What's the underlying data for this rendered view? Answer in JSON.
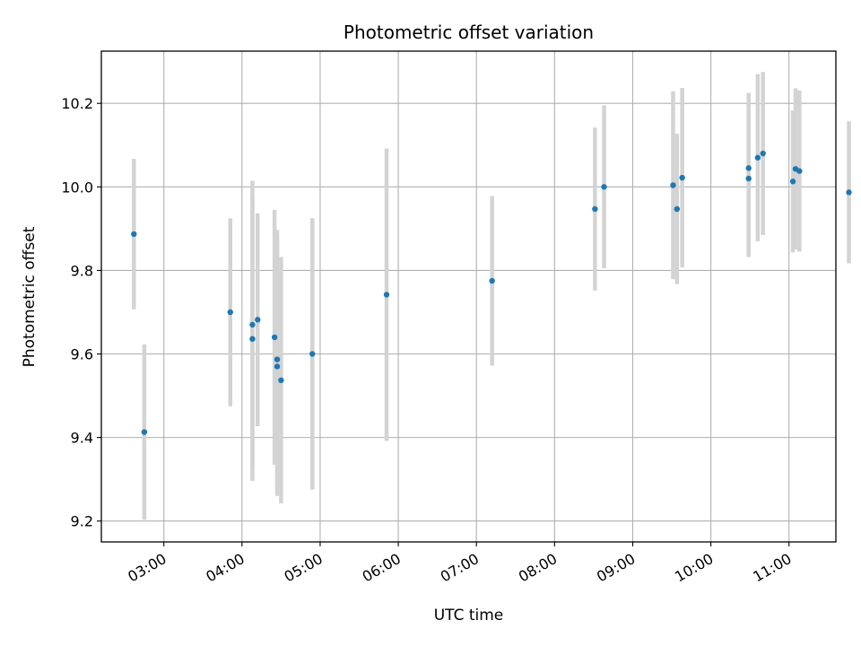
{
  "chart_data": {
    "type": "scatter",
    "title": "Photometric offset variation",
    "xlabel": "UTC time",
    "ylabel": "Photometric offset",
    "x_ticks": [
      "03:00",
      "04:00",
      "05:00",
      "06:00",
      "07:00",
      "08:00",
      "09:00",
      "10:00",
      "11:00"
    ],
    "y_ticks": [
      "9.2",
      "9.4",
      "9.6",
      "9.8",
      "10.0",
      "10.2"
    ],
    "xlim": [
      "02:12",
      "11:36"
    ],
    "ylim": [
      9.15,
      10.325
    ],
    "grid": true,
    "colors": {
      "marker": "#1f77b4",
      "errorbar": "#d3d3d3",
      "grid": "#b0b0b0"
    },
    "points": [
      {
        "x": "02:37",
        "y": 9.887,
        "yerr": 0.18
      },
      {
        "x": "02:45",
        "y": 9.413,
        "yerr": 0.21
      },
      {
        "x": "03:51",
        "y": 9.7,
        "yerr": 0.225
      },
      {
        "x": "04:08",
        "y": 9.636,
        "yerr": 0.34
      },
      {
        "x": "04:08",
        "y": 9.67,
        "yerr": 0.345
      },
      {
        "x": "04:12",
        "y": 9.682,
        "yerr": 0.255
      },
      {
        "x": "04:25",
        "y": 9.64,
        "yerr": 0.305
      },
      {
        "x": "04:27",
        "y": 9.57,
        "yerr": 0.31
      },
      {
        "x": "04:27",
        "y": 9.587,
        "yerr": 0.31
      },
      {
        "x": "04:30",
        "y": 9.537,
        "yerr": 0.295
      },
      {
        "x": "04:54",
        "y": 9.6,
        "yerr": 0.325
      },
      {
        "x": "05:51",
        "y": 9.742,
        "yerr": 0.35
      },
      {
        "x": "07:12",
        "y": 9.775,
        "yerr": 0.203
      },
      {
        "x": "08:31",
        "y": 9.947,
        "yerr": 0.195
      },
      {
        "x": "08:38",
        "y": 10.0,
        "yerr": 0.195
      },
      {
        "x": "09:31",
        "y": 10.004,
        "yerr": 0.225
      },
      {
        "x": "09:34",
        "y": 9.947,
        "yerr": 0.18
      },
      {
        "x": "09:38",
        "y": 10.022,
        "yerr": 0.215
      },
      {
        "x": "10:29",
        "y": 10.02,
        "yerr": 0.188
      },
      {
        "x": "10:29",
        "y": 10.045,
        "yerr": 0.18
      },
      {
        "x": "10:36",
        "y": 10.07,
        "yerr": 0.2
      },
      {
        "x": "10:40",
        "y": 10.08,
        "yerr": 0.195
      },
      {
        "x": "11:03",
        "y": 10.013,
        "yerr": 0.17
      },
      {
        "x": "11:05",
        "y": 10.043,
        "yerr": 0.193
      },
      {
        "x": "11:08",
        "y": 10.038,
        "yerr": 0.193
      },
      {
        "x": "11:46",
        "y": 9.987,
        "yerr": 0.17
      }
    ]
  }
}
